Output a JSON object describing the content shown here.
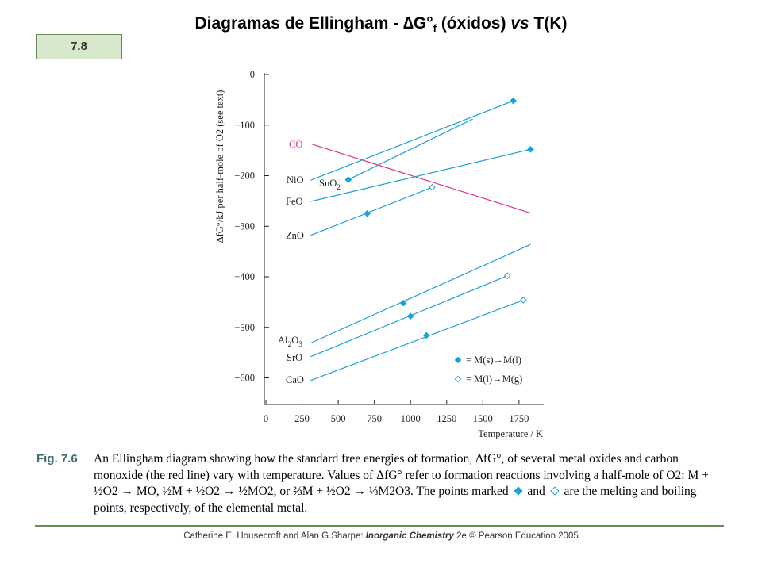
{
  "slide": {
    "title_main": "Diagramas de Ellingham - ",
    "title_delta": "∆G°",
    "title_sub": "f",
    "title_mid": " (óxidos) ",
    "title_vs": "vs",
    "title_end": "  T(K)",
    "number": "7.8"
  },
  "chart_data": {
    "type": "line",
    "xlabel": "Temperature / K",
    "ylabel": "ΔfG°/kJ per half-mole of O2 (see text)",
    "xlim": [
      0,
      1900
    ],
    "ylim": [
      -680,
      0
    ],
    "x_ticks": [
      "0",
      "250",
      "500",
      "750",
      "1000",
      "1250",
      "1500",
      "1750"
    ],
    "y_ticks": [
      "0",
      "−100",
      "−200",
      "−300",
      "−400",
      "−500",
      "−600"
    ],
    "grid": false,
    "legend_position": "bottom-right",
    "legend": [
      {
        "marker": "filled-diamond",
        "label": "= M(s)→M(l)"
      },
      {
        "marker": "open-diamond",
        "label": "= M(l)→M(g)"
      }
    ],
    "series": [
      {
        "name": "CO",
        "color": "#e0348e",
        "points": [
          [
            320,
            -138
          ],
          [
            1830,
            -274
          ]
        ]
      },
      {
        "name": "NiO",
        "color": "#1ba0d8",
        "points": [
          [
            310,
            -209
          ],
          [
            1710,
            -52
          ]
        ]
      },
      {
        "name": "SnO2",
        "color": "#1ba0d8",
        "points": [
          [
            570,
            -208
          ],
          [
            1430,
            -88
          ]
        ]
      },
      {
        "name": "FeO",
        "color": "#1ba0d8",
        "points": [
          [
            310,
            -251
          ],
          [
            1830,
            -148
          ]
        ]
      },
      {
        "name": "ZnO",
        "color": "#1ba0d8",
        "points": [
          [
            310,
            -318
          ],
          [
            1150,
            -223
          ]
        ]
      },
      {
        "name": "Al2O3",
        "color": "#1ba0d8",
        "points": [
          [
            310,
            -531
          ],
          [
            1830,
            -336
          ]
        ]
      },
      {
        "name": "SrO",
        "color": "#1ba0d8",
        "points": [
          [
            310,
            -558
          ],
          [
            1670,
            -398
          ]
        ]
      },
      {
        "name": "CaO",
        "color": "#1ba0d8",
        "points": [
          [
            310,
            -605
          ],
          [
            1780,
            -446
          ]
        ]
      }
    ],
    "markers": [
      {
        "series": "NiO",
        "x": 1710,
        "y": -52,
        "type": "filled"
      },
      {
        "series": "FeO",
        "x": 1830,
        "y": -148,
        "type": "filled"
      },
      {
        "series": "SnO2",
        "x": 570,
        "y": -208,
        "type": "filled"
      },
      {
        "series": "ZnO",
        "x": 700,
        "y": -275,
        "type": "filled"
      },
      {
        "series": "ZnO",
        "x": 1150,
        "y": -223,
        "type": "open"
      },
      {
        "series": "Al2O3",
        "x": 950,
        "y": -452,
        "type": "filled"
      },
      {
        "series": "SrO",
        "x": 1000,
        "y": -478,
        "type": "filled"
      },
      {
        "series": "SrO",
        "x": 1670,
        "y": -398,
        "type": "open"
      },
      {
        "series": "CaO",
        "x": 1110,
        "y": -516,
        "type": "filled"
      },
      {
        "series": "CaO",
        "x": 1780,
        "y": -446,
        "type": "open"
      }
    ],
    "labels": [
      {
        "text": "CO",
        "color": "#e0348e"
      },
      {
        "text": "NiO",
        "color": "#222"
      },
      {
        "text": "SnO",
        "sub": "2",
        "color": "#222"
      },
      {
        "text": "FeO",
        "color": "#222"
      },
      {
        "text": "ZnO",
        "color": "#222"
      },
      {
        "text": "Al",
        "sub": "2",
        "text2": "O",
        "sub2": "3",
        "color": "#222"
      },
      {
        "text": "SrO",
        "color": "#222"
      },
      {
        "text": "CaO",
        "color": "#222"
      }
    ]
  },
  "caption": {
    "fig_label": "Fig. 7.6",
    "line1": "An Ellingham diagram showing how the standard free energies of formation, ΔfG°, of several metal oxides and carbon monoxide (the red line) vary with temperature. Values of ΔfG° refer to formation reactions involving a half-mole of O2: M + ½O2 → MO, ½M + ½O2 → ½MO2, or ⅔M + ½O2 → ⅓M2O3. The points marked",
    "and_word": "and",
    "line2": "are the melting and boiling points, respectively, of the elemental metal."
  },
  "footer": {
    "authors": "Catherine E. Housecroft and Alan G.Sharpe: ",
    "book": "Inorganic Chemistry",
    "edition": " 2e © Pearson Education 2005"
  }
}
